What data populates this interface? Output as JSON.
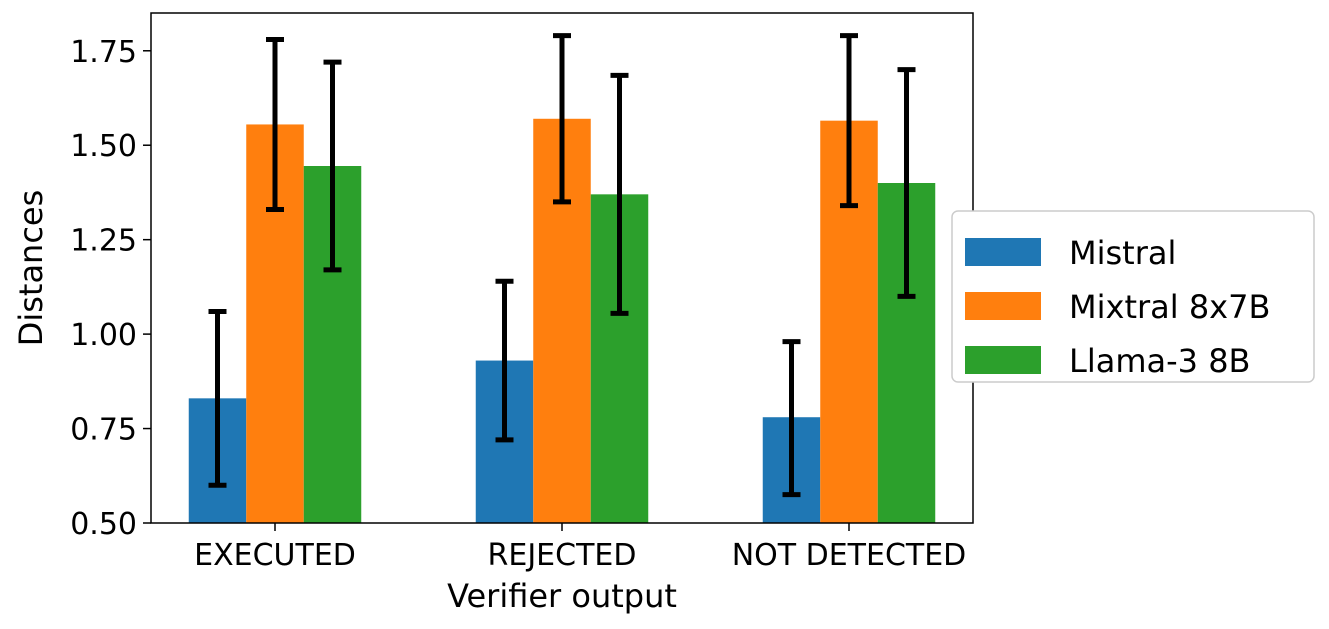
{
  "chart_data": {
    "type": "bar",
    "title": "",
    "xlabel": "Verifier output",
    "ylabel": "Distances",
    "ylim": [
      0.5,
      1.85
    ],
    "yticks": [
      0.5,
      0.75,
      1.0,
      1.25,
      1.5,
      1.75
    ],
    "ytick_labels": [
      "0.50",
      "0.75",
      "1.00",
      "1.25",
      "1.50",
      "1.75"
    ],
    "categories": [
      "EXECUTED",
      "REJECTED",
      "NOT DETECTED"
    ],
    "legend_position": "center-right",
    "series": [
      {
        "name": "Mistral",
        "color": "#1f77b4",
        "values": [
          0.83,
          0.93,
          0.78
        ],
        "err_low": [
          0.6,
          0.72,
          0.575
        ],
        "err_high": [
          1.06,
          1.14,
          0.98
        ]
      },
      {
        "name": "Mixtral 8x7B",
        "color": "#ff7f0e",
        "values": [
          1.555,
          1.57,
          1.565
        ],
        "err_low": [
          1.33,
          1.35,
          1.34
        ],
        "err_high": [
          1.78,
          1.79,
          1.79
        ]
      },
      {
        "name": "Llama-3 8B",
        "color": "#2ca02c",
        "values": [
          1.445,
          1.37,
          1.4
        ],
        "err_low": [
          1.17,
          1.055,
          1.1
        ],
        "err_high": [
          1.72,
          1.685,
          1.7
        ]
      }
    ]
  }
}
